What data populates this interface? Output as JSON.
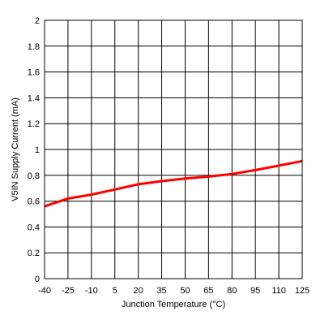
{
  "chart_data": {
    "type": "line",
    "title": "",
    "xlabel": "Junction Temperature (°C)",
    "ylabel": "V5IN Supply Current (mA)",
    "xlim": [
      -40,
      125
    ],
    "ylim": [
      0,
      2
    ],
    "grid": true,
    "x_ticks": [
      "-40",
      "-25",
      "-10",
      "5",
      "20",
      "35",
      "50",
      "65",
      "80",
      "95",
      "110",
      "125"
    ],
    "y_ticks": [
      "0",
      "0.2",
      "0.4",
      "0.6",
      "0.8",
      "1",
      "1.2",
      "1.4",
      "1.6",
      "1.8",
      "2"
    ],
    "series": [
      {
        "color": "#ff0000",
        "x": [
          -40,
          -35,
          -30,
          -25,
          -10,
          5,
          20,
          35,
          50,
          65,
          80,
          95,
          110,
          125
        ],
        "y": [
          0.56,
          0.58,
          0.6,
          0.62,
          0.65,
          0.69,
          0.73,
          0.755,
          0.775,
          0.79,
          0.81,
          0.84,
          0.875,
          0.91
        ]
      }
    ]
  }
}
